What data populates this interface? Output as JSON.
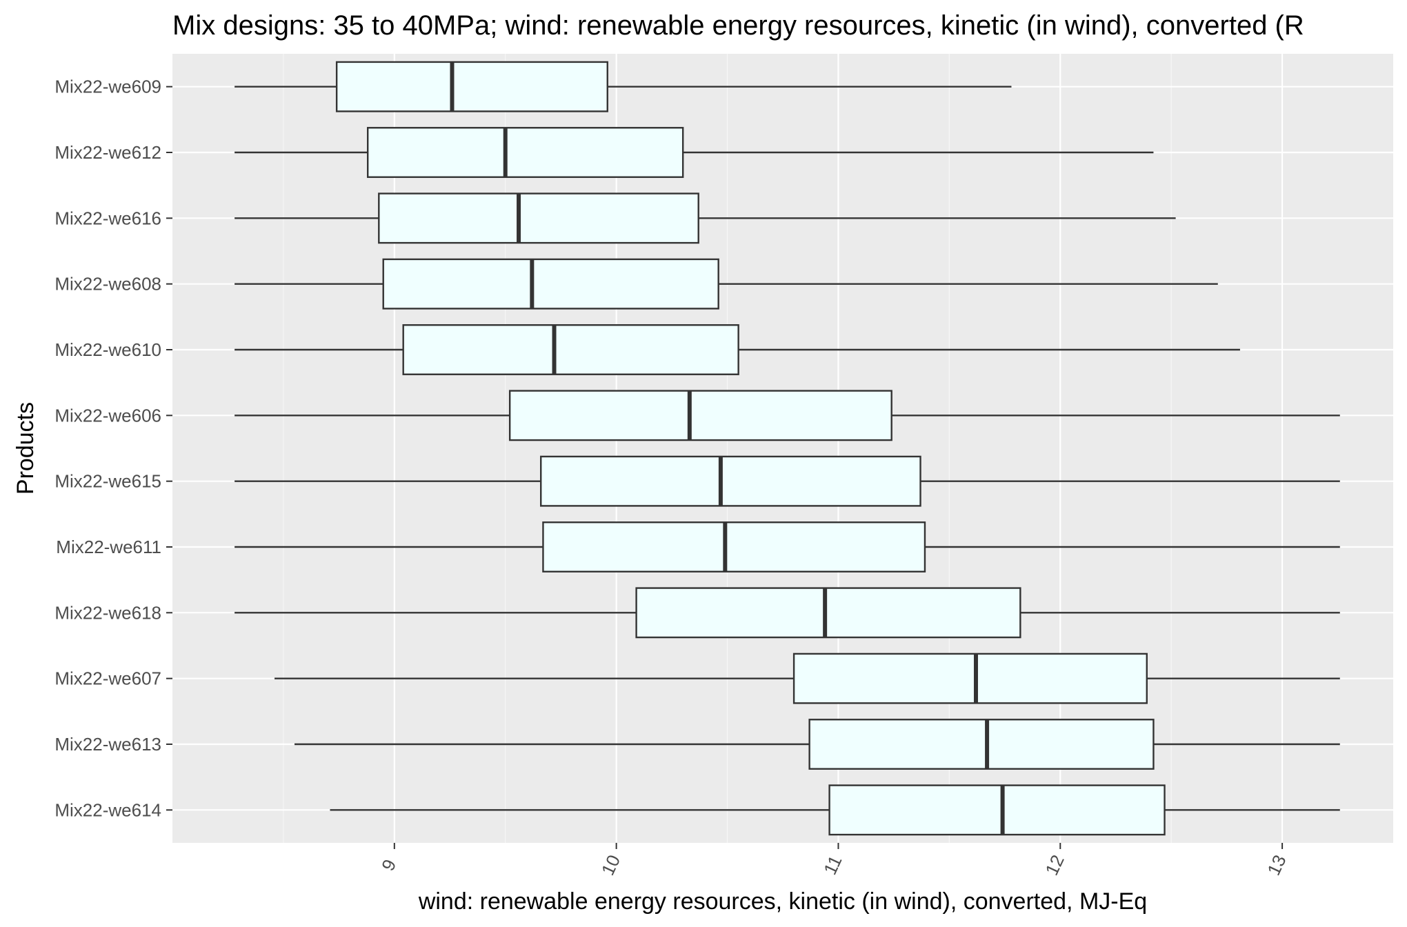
{
  "chart_data": {
    "type": "boxplot",
    "orientation": "horizontal",
    "title": "Mix designs: 35 to 40MPa; wind: renewable energy resources, kinetic (in wind), converted (R",
    "xlabel": "wind: renewable energy resources, kinetic (in wind), converted, MJ-Eq",
    "ylabel": "Products",
    "xlim": [
      8.0,
      13.5
    ],
    "xticks": [
      9,
      10,
      11,
      12,
      13
    ],
    "grid": true,
    "legend": "none",
    "colors": {
      "panel": "#ebebeb",
      "grid": "#ffffff",
      "box_fill": "#f0ffff",
      "box_stroke": "#333333"
    },
    "categories": [
      "Mix22-we609",
      "Mix22-we612",
      "Mix22-we616",
      "Mix22-we608",
      "Mix22-we610",
      "Mix22-we606",
      "Mix22-we615",
      "Mix22-we611",
      "Mix22-we618",
      "Mix22-we607",
      "Mix22-we613",
      "Mix22-we614"
    ],
    "boxes": [
      {
        "name": "Mix22-we609",
        "min": 8.28,
        "q1": 8.74,
        "median": 9.26,
        "q3": 9.96,
        "max": 11.78
      },
      {
        "name": "Mix22-we612",
        "min": 8.28,
        "q1": 8.88,
        "median": 9.5,
        "q3": 10.3,
        "max": 12.42
      },
      {
        "name": "Mix22-we616",
        "min": 8.28,
        "q1": 8.93,
        "median": 9.56,
        "q3": 10.37,
        "max": 12.52
      },
      {
        "name": "Mix22-we608",
        "min": 8.28,
        "q1": 8.95,
        "median": 9.62,
        "q3": 10.46,
        "max": 12.71
      },
      {
        "name": "Mix22-we610",
        "min": 8.28,
        "q1": 9.04,
        "median": 9.72,
        "q3": 10.55,
        "max": 12.81
      },
      {
        "name": "Mix22-we606",
        "min": 8.28,
        "q1": 9.52,
        "median": 10.33,
        "q3": 11.24,
        "max": 13.26
      },
      {
        "name": "Mix22-we615",
        "min": 8.28,
        "q1": 9.66,
        "median": 10.47,
        "q3": 11.37,
        "max": 13.26
      },
      {
        "name": "Mix22-we611",
        "min": 8.28,
        "q1": 9.67,
        "median": 10.49,
        "q3": 11.39,
        "max": 13.26
      },
      {
        "name": "Mix22-we618",
        "min": 8.28,
        "q1": 10.09,
        "median": 10.94,
        "q3": 11.82,
        "max": 13.26
      },
      {
        "name": "Mix22-we607",
        "min": 8.46,
        "q1": 10.8,
        "median": 11.62,
        "q3": 12.39,
        "max": 13.26
      },
      {
        "name": "Mix22-we613",
        "min": 8.55,
        "q1": 10.87,
        "median": 11.67,
        "q3": 12.42,
        "max": 13.26
      },
      {
        "name": "Mix22-we614",
        "min": 8.71,
        "q1": 10.96,
        "median": 11.74,
        "q3": 12.47,
        "max": 13.26
      }
    ]
  }
}
